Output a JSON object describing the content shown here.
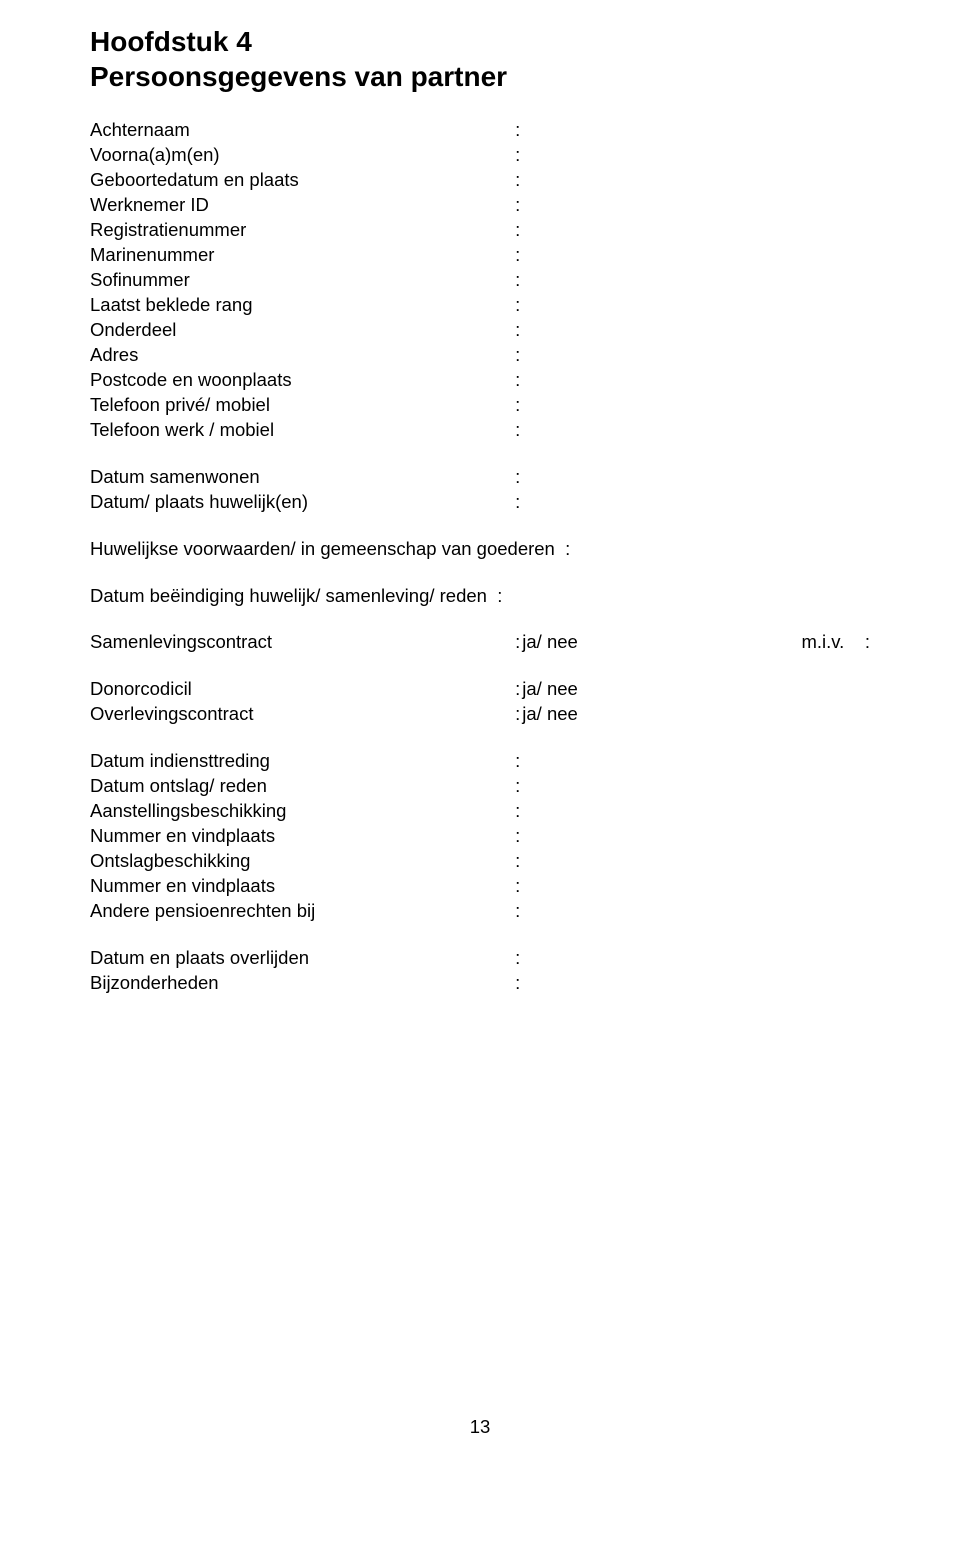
{
  "title": {
    "line1": "Hoofdstuk 4",
    "line2": "Persoonsgegevens van partner"
  },
  "block1": [
    {
      "label": "Achternaam",
      "sep": ":"
    },
    {
      "label": "Voorna(a)m(en)",
      "sep": ":"
    },
    {
      "label": "Geboortedatum en plaats",
      "sep": ":"
    },
    {
      "label": "Werknemer ID",
      "sep": ":"
    },
    {
      "label": "Registratienummer",
      "sep": ":"
    },
    {
      "label": "Marinenummer",
      "sep": ":"
    },
    {
      "label": "Sofinummer",
      "sep": ":"
    },
    {
      "label": "Laatst beklede rang",
      "sep": ":"
    },
    {
      "label": "Onderdeel",
      "sep": ":"
    },
    {
      "label": "Adres",
      "sep": ":"
    },
    {
      "label": "Postcode en woonplaats",
      "sep": ":"
    },
    {
      "label": "Telefoon privé/ mobiel",
      "sep": ":"
    },
    {
      "label": "Telefoon werk / mobiel",
      "sep": ":"
    }
  ],
  "block2": [
    {
      "label": "Datum samenwonen",
      "sep": ":"
    },
    {
      "label": "Datum/ plaats huwelijk(en)",
      "sep": ":"
    }
  ],
  "block3": [
    {
      "label": "Huwelijkse voorwaarden/ in gemeenschap van goederen",
      "sep": ":",
      "wide": true
    }
  ],
  "block4": [
    {
      "label": "Datum beëindiging huwelijk/ samenleving/ reden",
      "sep": ":",
      "wide": true
    }
  ],
  "block5": [
    {
      "label": "Samenlevingscontract",
      "sep": ":",
      "val": "ja/ nee",
      "tail": "m.i.v.    :"
    }
  ],
  "block6": [
    {
      "label": "Donorcodicil",
      "sep": ":",
      "val": "ja/ nee"
    },
    {
      "label": "Overlevingscontract",
      "sep": ":",
      "val": "ja/ nee"
    }
  ],
  "block7": [
    {
      "label": "Datum indiensttreding",
      "sep": ":"
    },
    {
      "label": "Datum ontslag/ reden",
      "sep": ":"
    },
    {
      "label": "Aanstellingsbeschikking",
      "sep": ":"
    },
    {
      "label": "Nummer en vindplaats",
      "sep": ":"
    },
    {
      "label": "Ontslagbeschikking",
      "sep": ":"
    },
    {
      "label": "Nummer en vindplaats",
      "sep": ":"
    },
    {
      "label": "Andere pensioenrechten bij",
      "sep": ":"
    }
  ],
  "block8": [
    {
      "label": "Datum en plaats overlijden",
      "sep": ":"
    },
    {
      "label": "Bijzonderheden",
      "sep": ":"
    }
  ],
  "pageNumber": "13"
}
